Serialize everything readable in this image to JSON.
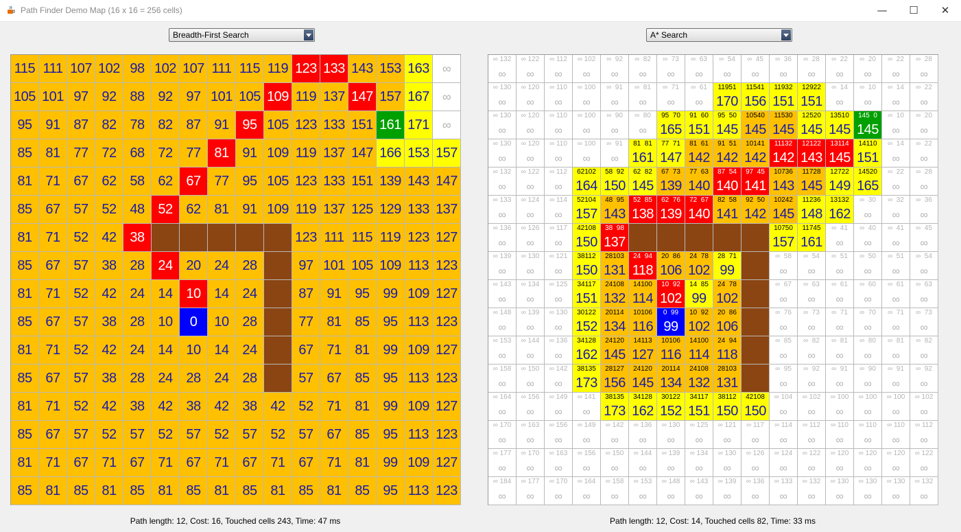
{
  "window": {
    "title": "Path Finder Demo Map (16 x 16 = 256 cells)",
    "icon": "java-cup-icon",
    "controls": {
      "minimize": "—",
      "maximize": "☐",
      "close": "✕"
    }
  },
  "colors": {
    "visited": "#ffc000",
    "frontier": "#ffff00",
    "path": "#ff0000",
    "start": "#0000ff",
    "goal": "#00a000",
    "wall": "#8b4513",
    "unvisited": "#ffffff",
    "text_blue": "#1a1aa8",
    "text_white": "#ffffff",
    "text_gray": "#b4b4b4"
  },
  "bfs": {
    "algorithm_label": "Breadth-First Search",
    "status": "Path length: 12, Cost: 16, Touched cells 243, Time: 47 ms",
    "rows": [
      [
        "115",
        "111",
        "107",
        "102",
        "98",
        "102",
        "107",
        "111",
        "115",
        "119",
        "123",
        "133",
        "143",
        "153",
        "163",
        "∞"
      ],
      [
        "105",
        "101",
        "97",
        "92",
        "88",
        "92",
        "97",
        "101",
        "105",
        "109",
        "119",
        "137",
        "147",
        "157",
        "167",
        "∞"
      ],
      [
        "95",
        "91",
        "87",
        "82",
        "78",
        "82",
        "87",
        "91",
        "95",
        "105",
        "123",
        "133",
        "151",
        "161",
        "171",
        "∞"
      ],
      [
        "85",
        "81",
        "77",
        "72",
        "68",
        "72",
        "77",
        "81",
        "91",
        "109",
        "119",
        "137",
        "147",
        "166",
        "153",
        "157"
      ],
      [
        "81",
        "71",
        "67",
        "62",
        "58",
        "62",
        "67",
        "77",
        "95",
        "105",
        "123",
        "133",
        "151",
        "139",
        "143",
        "147"
      ],
      [
        "85",
        "67",
        "57",
        "52",
        "48",
        "52",
        "62",
        "81",
        "91",
        "109",
        "119",
        "137",
        "125",
        "129",
        "133",
        "137"
      ],
      [
        "81",
        "71",
        "52",
        "42",
        "38",
        "",
        "",
        "",
        "",
        "",
        "123",
        "111",
        "115",
        "119",
        "123",
        "127"
      ],
      [
        "85",
        "67",
        "57",
        "38",
        "28",
        "24",
        "20",
        "24",
        "28",
        "",
        "97",
        "101",
        "105",
        "109",
        "113",
        "123"
      ],
      [
        "81",
        "71",
        "52",
        "42",
        "24",
        "14",
        "10",
        "14",
        "24",
        "",
        "87",
        "91",
        "95",
        "99",
        "109",
        "127"
      ],
      [
        "85",
        "67",
        "57",
        "38",
        "28",
        "10",
        "0",
        "10",
        "28",
        "",
        "77",
        "81",
        "85",
        "95",
        "113",
        "123"
      ],
      [
        "81",
        "71",
        "52",
        "42",
        "24",
        "14",
        "10",
        "14",
        "24",
        "",
        "67",
        "71",
        "81",
        "99",
        "109",
        "127"
      ],
      [
        "85",
        "67",
        "57",
        "38",
        "28",
        "24",
        "28",
        "24",
        "28",
        "",
        "57",
        "67",
        "85",
        "95",
        "113",
        "123"
      ],
      [
        "81",
        "71",
        "52",
        "42",
        "38",
        "42",
        "38",
        "42",
        "38",
        "42",
        "52",
        "71",
        "81",
        "99",
        "109",
        "127"
      ],
      [
        "85",
        "67",
        "57",
        "52",
        "57",
        "52",
        "57",
        "52",
        "57",
        "52",
        "57",
        "67",
        "85",
        "95",
        "113",
        "123"
      ],
      [
        "81",
        "71",
        "67",
        "71",
        "67",
        "71",
        "67",
        "71",
        "67",
        "71",
        "67",
        "71",
        "81",
        "99",
        "109",
        "127"
      ],
      [
        "85",
        "81",
        "85",
        "81",
        "85",
        "81",
        "85",
        "81",
        "85",
        "81",
        "85",
        "81",
        "85",
        "95",
        "113",
        "123"
      ]
    ],
    "kinds": [
      "VVVVVVVVVVPPVVFU",
      "VVVVVVVVVPVVPVFU",
      "VVVVVVVVPVVVVGFU",
      "VVVVVVVPVVVVVFFF",
      "VVVVVVPVVVVVVVVV",
      "VVVVVPVVVVVVVVVV",
      "VVVVPWWWWWVVVVVV",
      "VVVVVPVVVWVVVVVV",
      "VVVVVVPVVWVVVVVV",
      "VVVVVVSVVWVVVVVV",
      "VVVVVVVVVWVVVVVV",
      "VVVVVVVVVWVVVVVV",
      "VVVVVVVVVVVVVVVV",
      "VVVVVVVVVVVVVVVV",
      "VVVVVVVVVVVVVVVV",
      "VVVVVVVVVVVVVVVV"
    ]
  },
  "astar": {
    "algorithm_label": "A* Search",
    "status": "Path length: 12, Cost: 14, Touched cells 82, Time: 33 ms",
    "small": [
      [
        "∞ 132",
        "∞ 122",
        "∞ 112",
        "∞ 102",
        "∞  92",
        "∞  82",
        "∞  73",
        "∞  63",
        "∞  54",
        "∞  45",
        "∞  36",
        "∞  28",
        "∞  22",
        "∞  20",
        "∞  22",
        "∞  28"
      ],
      [
        "∞ 130",
        "∞ 120",
        "∞ 110",
        "∞ 100",
        "∞  91",
        "∞  81",
        "∞  71",
        "∞  61",
        "11951",
        "11541",
        "11932",
        "12922",
        "∞  14",
        "∞  10",
        "∞  14",
        "∞  22"
      ],
      [
        "∞ 130",
        "∞ 120",
        "∞ 110",
        "∞ 100",
        "∞  90",
        "∞  80",
        "95  70",
        "91  60",
        "95  50",
        "10540",
        "11530",
        "12520",
        "13510",
        "145  0",
        "∞  10",
        "∞  20"
      ],
      [
        "∞ 130",
        "∞ 120",
        "∞ 110",
        "∞ 100",
        "∞  91",
        "81  81",
        "77  71",
        "81  61",
        "91  51",
        "10141",
        "11132",
        "12122",
        "13114",
        "14110",
        "∞  14",
        "∞  22"
      ],
      [
        "∞ 132",
        "∞ 122",
        "∞ 112",
        "62102",
        "58  92",
        "62  82",
        "67  73",
        "77  63",
        "87  54",
        "97  45",
        "10736",
        "11728",
        "12722",
        "14520",
        "∞  22",
        "∞  28"
      ],
      [
        "∞ 133",
        "∞ 124",
        "∞ 114",
        "52104",
        "48  95",
        "52  85",
        "62  76",
        "72  67",
        "82  58",
        "92  50",
        "10242",
        "11236",
        "13132",
        "∞  30",
        "∞  32",
        "∞  36"
      ],
      [
        "∞ 136",
        "∞ 126",
        "∞ 117",
        "42108",
        "38  98",
        "",
        "",
        "",
        "",
        "",
        "10750",
        "11745",
        "∞  41",
        "∞  40",
        "∞  41",
        "∞  45"
      ],
      [
        "∞ 139",
        "∞ 130",
        "∞ 121",
        "38112",
        "28103",
        "24  94",
        "20  86",
        "24  78",
        "28  71",
        "",
        "∞  58",
        "∞  54",
        "∞  51",
        "∞  50",
        "∞  51",
        "∞  54"
      ],
      [
        "∞ 143",
        "∞ 134",
        "∞ 125",
        "34117",
        "24108",
        "14100",
        "10  92",
        "14  85",
        "24  78",
        "",
        "∞  67",
        "∞  63",
        "∞  61",
        "∞  60",
        "∞  61",
        "∞  63"
      ],
      [
        "∞ 148",
        "∞ 139",
        "∞ 130",
        "30122",
        "20114",
        "10106",
        "0  99",
        "10  92",
        "20  86",
        "",
        "∞  76",
        "∞  73",
        "∞  71",
        "∞  70",
        "∞  71",
        "∞  73"
      ],
      [
        "∞ 153",
        "∞ 144",
        "∞ 136",
        "34128",
        "24120",
        "14113",
        "10106",
        "14100",
        "24  94",
        "",
        "∞  85",
        "∞  82",
        "∞  81",
        "∞  80",
        "∞  81",
        "∞  82"
      ],
      [
        "∞ 158",
        "∞ 150",
        "∞ 142",
        "38135",
        "28127",
        "24120",
        "20114",
        "24108",
        "28103",
        "",
        "∞  95",
        "∞  92",
        "∞  91",
        "∞  90",
        "∞  91",
        "∞  92"
      ],
      [
        "∞ 164",
        "∞ 156",
        "∞ 149",
        "∞ 141",
        "38135",
        "34128",
        "30122",
        "34117",
        "38112",
        "42108",
        "∞ 104",
        "∞ 102",
        "∞ 100",
        "∞ 100",
        "∞ 100",
        "∞ 102"
      ],
      [
        "∞ 170",
        "∞ 163",
        "∞ 156",
        "∞ 149",
        "∞ 142",
        "∞ 136",
        "∞ 130",
        "∞ 125",
        "∞ 121",
        "∞ 117",
        "∞ 114",
        "∞ 112",
        "∞ 110",
        "∞ 110",
        "∞ 110",
        "∞ 112"
      ],
      [
        "∞ 177",
        "∞ 170",
        "∞ 163",
        "∞ 156",
        "∞ 150",
        "∞ 144",
        "∞ 139",
        "∞ 134",
        "∞ 130",
        "∞ 126",
        "∞ 124",
        "∞ 122",
        "∞ 120",
        "∞ 120",
        "∞ 120",
        "∞ 122"
      ],
      [
        "∞ 184",
        "∞ 177",
        "∞ 170",
        "∞ 164",
        "∞ 158",
        "∞ 153",
        "∞ 148",
        "∞ 143",
        "∞ 139",
        "∞ 136",
        "∞ 133",
        "∞ 132",
        "∞ 130",
        "∞ 130",
        "∞ 130",
        "∞ 132"
      ]
    ],
    "big": [
      [
        "∞",
        "∞",
        "∞",
        "∞",
        "∞",
        "∞",
        "∞",
        "∞",
        "∞",
        "∞",
        "∞",
        "∞",
        "∞",
        "∞",
        "∞",
        "∞"
      ],
      [
        "∞",
        "∞",
        "∞",
        "∞",
        "∞",
        "∞",
        "∞",
        "∞",
        "170",
        "156",
        "151",
        "151",
        "∞",
        "∞",
        "∞",
        "∞"
      ],
      [
        "∞",
        "∞",
        "∞",
        "∞",
        "∞",
        "∞",
        "165",
        "151",
        "145",
        "145",
        "145",
        "145",
        "145",
        "145",
        "∞",
        "∞"
      ],
      [
        "∞",
        "∞",
        "∞",
        "∞",
        "∞",
        "161",
        "147",
        "142",
        "142",
        "142",
        "142",
        "143",
        "145",
        "151",
        "∞",
        "∞"
      ],
      [
        "∞",
        "∞",
        "∞",
        "164",
        "150",
        "145",
        "139",
        "140",
        "140",
        "141",
        "143",
        "145",
        "149",
        "165",
        "∞",
        "∞"
      ],
      [
        "∞",
        "∞",
        "∞",
        "157",
        "143",
        "138",
        "139",
        "140",
        "141",
        "142",
        "145",
        "148",
        "162",
        "∞",
        "∞",
        "∞"
      ],
      [
        "∞",
        "∞",
        "∞",
        "150",
        "137",
        "",
        "",
        "",
        "",
        "",
        "157",
        "161",
        "∞",
        "∞",
        "∞",
        "∞"
      ],
      [
        "∞",
        "∞",
        "∞",
        "150",
        "131",
        "118",
        "106",
        "102",
        "99",
        "",
        "∞",
        "∞",
        "∞",
        "∞",
        "∞",
        "∞"
      ],
      [
        "∞",
        "∞",
        "∞",
        "151",
        "132",
        "114",
        "102",
        "99",
        "102",
        "",
        "∞",
        "∞",
        "∞",
        "∞",
        "∞",
        "∞"
      ],
      [
        "∞",
        "∞",
        "∞",
        "152",
        "134",
        "116",
        "99",
        "102",
        "106",
        "",
        "∞",
        "∞",
        "∞",
        "∞",
        "∞",
        "∞"
      ],
      [
        "∞",
        "∞",
        "∞",
        "162",
        "145",
        "127",
        "116",
        "114",
        "118",
        "",
        "∞",
        "∞",
        "∞",
        "∞",
        "∞",
        "∞"
      ],
      [
        "∞",
        "∞",
        "∞",
        "173",
        "156",
        "145",
        "134",
        "132",
        "131",
        "",
        "∞",
        "∞",
        "∞",
        "∞",
        "∞",
        "∞"
      ],
      [
        "∞",
        "∞",
        "∞",
        "∞",
        "173",
        "162",
        "152",
        "151",
        "150",
        "150",
        "∞",
        "∞",
        "∞",
        "∞",
        "∞",
        "∞"
      ],
      [
        "∞",
        "∞",
        "∞",
        "∞",
        "∞",
        "∞",
        "∞",
        "∞",
        "∞",
        "∞",
        "∞",
        "∞",
        "∞",
        "∞",
        "∞",
        "∞"
      ],
      [
        "∞",
        "∞",
        "∞",
        "∞",
        "∞",
        "∞",
        "∞",
        "∞",
        "∞",
        "∞",
        "∞",
        "∞",
        "∞",
        "∞",
        "∞",
        "∞"
      ],
      [
        "∞",
        "∞",
        "∞",
        "∞",
        "∞",
        "∞",
        "∞",
        "∞",
        "∞",
        "∞",
        "∞",
        "∞",
        "∞",
        "∞",
        "∞",
        "∞"
      ]
    ],
    "kinds": [
      "UUUUUUUUUUUUUUUU",
      "UUUUUUUUFFFFUUUU",
      "UUUUUUFFFVVFFGUU",
      "UUUUUFFVVVPPPFUU",
      "UUUFFFVVPPVVFFUU",
      "UUUFVPPPVVVFFUUU",
      "UUUFPWWWWWFFUUUU",
      "UUUFVPVVFWUUUUUU",
      "UUUFVVPFVWUUUUUU",
      "UUUFVVSVVWUUUUUU",
      "UUUFVVVVVWUUUUUU",
      "UUUFVVVVVWUUUUUU",
      "UUUUFFFFFFUUUUUU",
      "UUUUUUUUUUUUUUUU",
      "UUUUUUUUUUUUUUUU",
      "UUUUUUUUUUUUUUUU"
    ]
  }
}
